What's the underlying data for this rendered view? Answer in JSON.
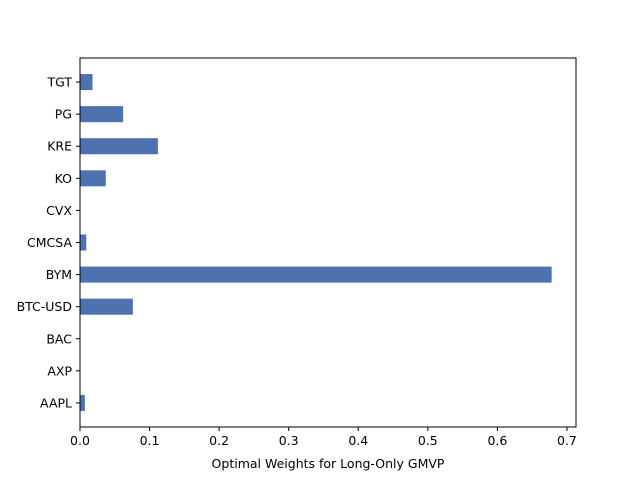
{
  "chart_data": {
    "type": "bar",
    "orientation": "horizontal",
    "title": "",
    "xlabel": "Optimal Weights for Long-Only GMVP",
    "ylabel": "",
    "categories": [
      "AAPL",
      "AXP",
      "BAC",
      "BTC-USD",
      "BYM",
      "CMCSA",
      "CVX",
      "KO",
      "KRE",
      "PG",
      "TGT"
    ],
    "values": [
      0.007,
      0.0,
      0.0,
      0.076,
      0.678,
      0.009,
      0.0,
      0.037,
      0.112,
      0.062,
      0.018
    ],
    "xlim": [
      0,
      0.713
    ],
    "xticks": [
      0.0,
      0.1,
      0.2,
      0.3,
      0.4,
      0.5,
      0.6,
      0.7
    ],
    "xtick_labels": [
      "0.0",
      "0.1",
      "0.2",
      "0.3",
      "0.4",
      "0.5",
      "0.6",
      "0.7"
    ],
    "bar_color": "#4c72b0",
    "grid": false,
    "legend": "none"
  }
}
